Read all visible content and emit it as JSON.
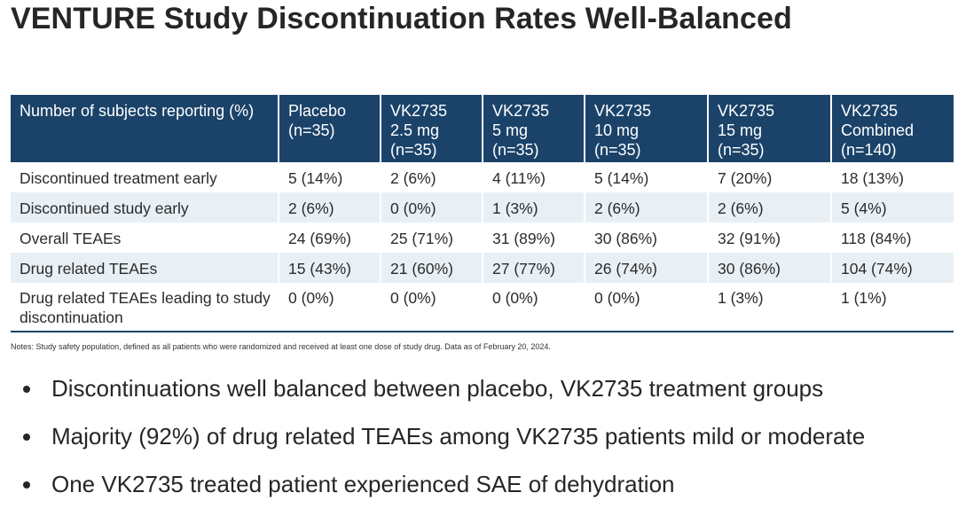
{
  "title": "VENTURE Study Discontinuation Rates Well-Balanced",
  "table": {
    "headers": [
      [
        "Number of subjects reporting (%)"
      ],
      [
        "Placebo",
        "(n=35)"
      ],
      [
        "VK2735",
        "2.5 mg",
        "(n=35)"
      ],
      [
        "VK2735",
        "5 mg",
        "(n=35)"
      ],
      [
        "VK2735",
        "10 mg",
        "(n=35)"
      ],
      [
        "VK2735",
        "15 mg",
        "(n=35)"
      ],
      [
        "VK2735",
        "Combined",
        "(n=140)"
      ]
    ],
    "rows": [
      [
        "Discontinued treatment early",
        "5 (14%)",
        "2 (6%)",
        "4 (11%)",
        "5 (14%)",
        "7 (20%)",
        "18 (13%)"
      ],
      [
        "Discontinued study early",
        "2 (6%)",
        "0 (0%)",
        "1 (3%)",
        "2 (6%)",
        "2 (6%)",
        "5 (4%)"
      ],
      [
        "Overall TEAEs",
        "24 (69%)",
        "25 (71%)",
        "31 (89%)",
        "30 (86%)",
        "32 (91%)",
        "118 (84%)"
      ],
      [
        "Drug related TEAEs",
        "15 (43%)",
        "21 (60%)",
        "27 (77%)",
        "26 (74%)",
        "30 (86%)",
        "104 (74%)"
      ],
      [
        "Drug related TEAEs leading to study discontinuation",
        "0 (0%)",
        "0 (0%)",
        "0 (0%)",
        "0 (0%)",
        "1 (3%)",
        "1 (1%)"
      ]
    ]
  },
  "notes": "Notes: Study safety population, defined as all patients who were randomized and received at least one dose of study drug. Data as of February 20, 2024.",
  "bullets": [
    "Discontinuations well balanced between placebo, VK2735 treatment groups",
    "Majority (92%) of drug related TEAEs among VK2735 patients mild or moderate",
    "One VK2735 treated patient experienced SAE of dehydration"
  ],
  "colors": {
    "header_bg": "#1b4369",
    "band_bg": "#e8f0f6",
    "text": "#262626"
  }
}
